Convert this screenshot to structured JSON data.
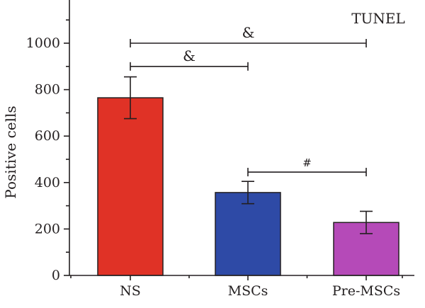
{
  "chart_data": {
    "type": "bar",
    "title": "TUNEL",
    "xlabel": "",
    "ylabel": "Positive cells",
    "categories": [
      "NS",
      "MSCs",
      "Pre-MSCs"
    ],
    "values": [
      765,
      357,
      228
    ],
    "errors": [
      90,
      48,
      48
    ],
    "colors": [
      "#e03226",
      "#2e4aa6",
      "#b54ab8"
    ],
    "ylim": [
      0,
      1100
    ],
    "yticks": [
      0,
      200,
      400,
      600,
      800,
      1000
    ],
    "ytick_labels": [
      "0",
      "200",
      "400",
      "600",
      "800",
      "1000"
    ],
    "grid": false,
    "significance": [
      {
        "from": 0,
        "to": 2,
        "label": "&",
        "level": 1000
      },
      {
        "from": 0,
        "to": 1,
        "label": "&",
        "level": 900
      },
      {
        "from": 1,
        "to": 2,
        "label": "#",
        "level": 445
      }
    ]
  }
}
